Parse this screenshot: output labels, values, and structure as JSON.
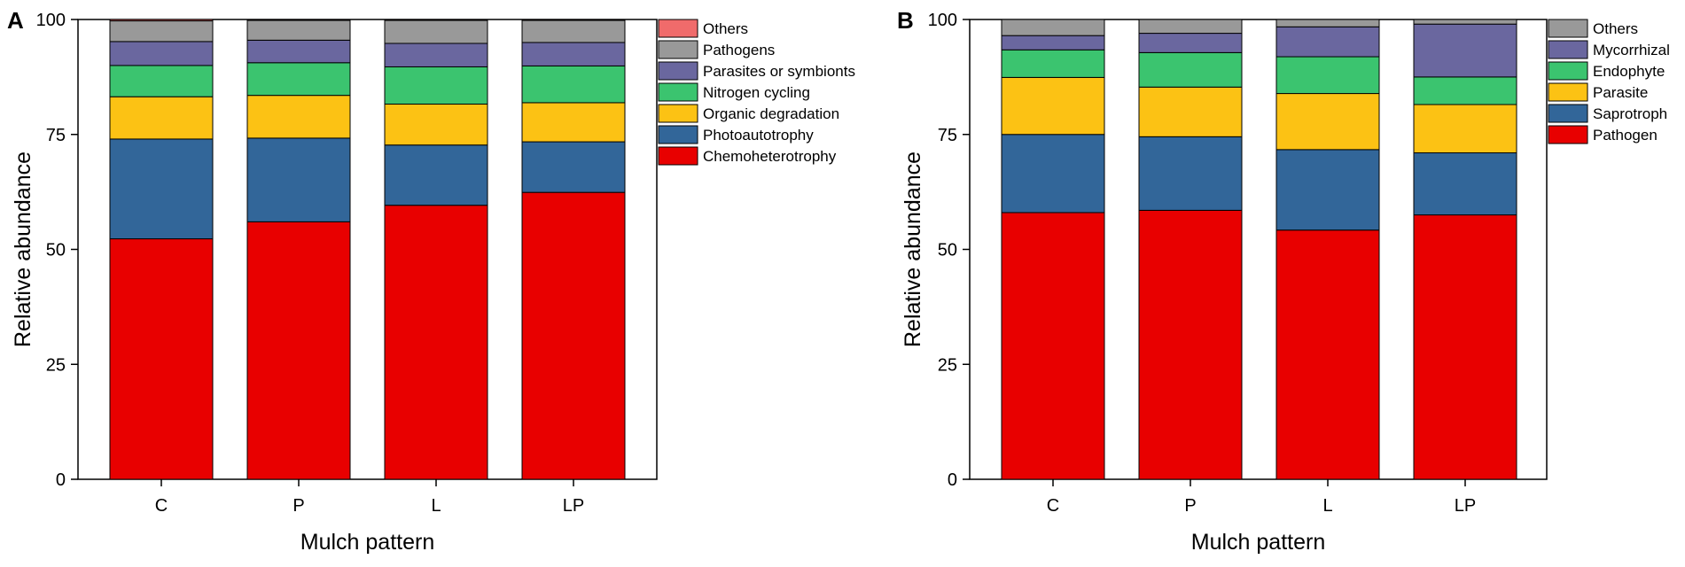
{
  "chart_data": [
    {
      "panel": "A",
      "type": "bar",
      "stacked": true,
      "xlabel": "Mulch pattern",
      "ylabel": "Relative abundance",
      "ylim": [
        0,
        100
      ],
      "yticks": [
        "0",
        "25",
        "50",
        "75",
        "100"
      ],
      "categories": [
        "C",
        "P",
        "L",
        "LP"
      ],
      "legend_position": "right",
      "series": [
        {
          "name": "Chemoheterotrophy",
          "color": "#e80000",
          "values": [
            52.3,
            56.0,
            59.6,
            62.4
          ]
        },
        {
          "name": "Photoautotrophy",
          "color": "#326699",
          "values": [
            21.7,
            18.2,
            13.1,
            11.0
          ]
        },
        {
          "name": "Organic degradation",
          "color": "#fcc214",
          "values": [
            9.2,
            9.3,
            8.9,
            8.5
          ]
        },
        {
          "name": "Nitrogen cycling",
          "color": "#3bc46f",
          "values": [
            6.8,
            7.1,
            8.1,
            8.0
          ]
        },
        {
          "name": "Parasites or symbionts",
          "color": "#6a679f",
          "values": [
            5.2,
            4.9,
            5.1,
            5.1
          ]
        },
        {
          "name": "Pathogens",
          "color": "#999999",
          "values": [
            4.5,
            4.3,
            5.0,
            4.8
          ]
        },
        {
          "name": "Others",
          "color": "#f06b6b",
          "values": [
            0.3,
            0.2,
            0.2,
            0.2
          ]
        }
      ]
    },
    {
      "panel": "B",
      "type": "bar",
      "stacked": true,
      "xlabel": "Mulch pattern",
      "ylabel": "Relative abundance",
      "ylim": [
        0,
        100
      ],
      "yticks": [
        "0",
        "25",
        "50",
        "75",
        "100"
      ],
      "categories": [
        "C",
        "P",
        "L",
        "LP"
      ],
      "legend_position": "right",
      "series": [
        {
          "name": "Pathogen",
          "color": "#e80000",
          "values": [
            58.0,
            58.5,
            54.2,
            57.5
          ]
        },
        {
          "name": "Saprotroph",
          "color": "#326699",
          "values": [
            17.0,
            16.0,
            17.5,
            13.5
          ]
        },
        {
          "name": "Parasite",
          "color": "#fcc214",
          "values": [
            12.4,
            10.8,
            12.2,
            10.5
          ]
        },
        {
          "name": "Endophyte",
          "color": "#3bc46f",
          "values": [
            6.0,
            7.5,
            8.0,
            6.0
          ]
        },
        {
          "name": "Mycorrhizal",
          "color": "#6a679f",
          "values": [
            3.1,
            4.2,
            6.5,
            11.5
          ]
        },
        {
          "name": "Others",
          "color": "#999999",
          "values": [
            3.5,
            3.0,
            1.6,
            1.0
          ]
        }
      ]
    }
  ]
}
